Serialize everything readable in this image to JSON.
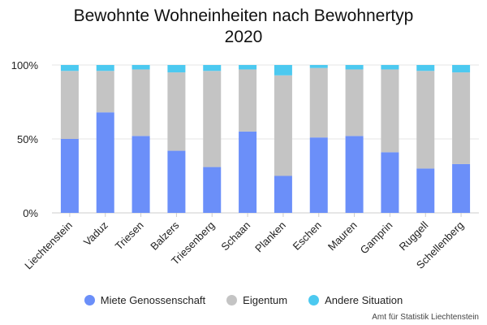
{
  "chart_data": {
    "type": "bar",
    "stacked": true,
    "title": [
      "Bewohnte Wohneinheiten nach Bewohnertyp",
      "2020"
    ],
    "categories": [
      "Liechtenstein",
      "Vaduz",
      "Triesen",
      "Balzers",
      "Triesenberg",
      "Schaan",
      "Planken",
      "Eschen",
      "Mauren",
      "Gamprin",
      "Ruggell",
      "Schellenberg"
    ],
    "series": [
      {
        "name": "Miete Genossenschaft",
        "color": "#6b8ff9",
        "values": [
          50,
          68,
          52,
          42,
          31,
          55,
          25,
          51,
          52,
          41,
          30,
          33
        ]
      },
      {
        "name": "Eigentum",
        "color": "#c4c4c4",
        "values": [
          46,
          28,
          45,
          53,
          65,
          42,
          68,
          47,
          45,
          56,
          66,
          62
        ]
      },
      {
        "name": "Andere Situation",
        "color": "#4cc9f0",
        "values": [
          4,
          4,
          3,
          5,
          4,
          3,
          7,
          2,
          3,
          3,
          4,
          5
        ]
      }
    ],
    "yticks": [
      "0%",
      "50%",
      "100%"
    ],
    "ylim": [
      0,
      100
    ],
    "grid": true,
    "legend_position": "bottom"
  },
  "source": "Amt für Statistik Liechtenstein"
}
